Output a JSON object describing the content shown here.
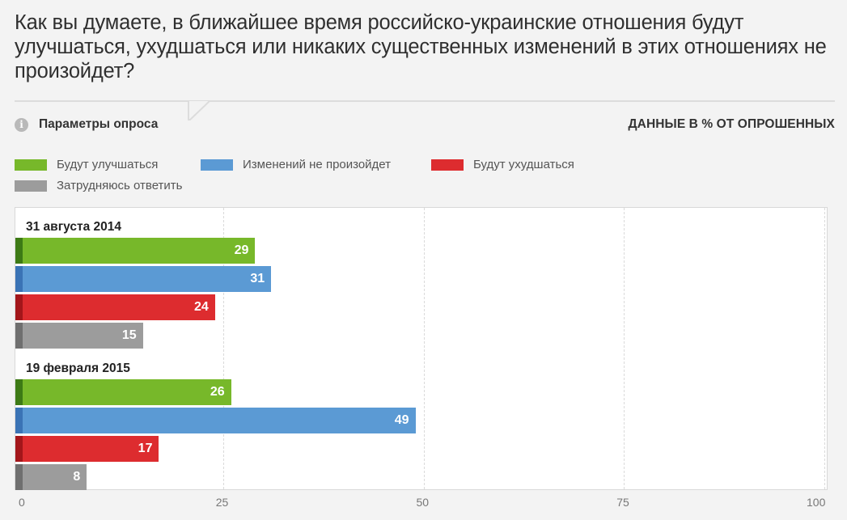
{
  "header": {
    "question": "Как вы думаете, в ближайшее время российско-украинские отношения будут улучшаться, ухудшаться или никаких существенных изменений в этих отношениях не произойдет?",
    "params_label": "Параметры опроса",
    "params_icon": "info-icon",
    "units_label": "ДАННЫЕ В % ОТ ОПРОШЕННЫХ"
  },
  "legend": [
    {
      "label": "Будут улучшаться",
      "color": "#77b82a"
    },
    {
      "label": "Изменений не произойдет",
      "color": "#5b9ad4"
    },
    {
      "label": "Будут ухудшаться",
      "color": "#dd2c2f"
    },
    {
      "label": "Затрудняюсь ответить",
      "color": "#9c9c9c"
    }
  ],
  "chart_data": {
    "type": "bar",
    "orientation": "horizontal",
    "xlim": [
      0,
      100
    ],
    "xticks": [
      "0",
      "25",
      "50",
      "75",
      "100"
    ],
    "grid": true,
    "legend_position": "top-left",
    "categories": [
      "31 августа 2014",
      "19 февраля 2015"
    ],
    "series": [
      {
        "name": "Будут улучшаться",
        "color": "#77b82a",
        "cap_color": "#3d7a15",
        "values": [
          29,
          26
        ]
      },
      {
        "name": "Изменений не произойдет",
        "color": "#5b9ad4",
        "cap_color": "#3a73b5",
        "values": [
          31,
          49
        ]
      },
      {
        "name": "Будут ухудшаться",
        "color": "#dd2c2f",
        "cap_color": "#a3161a",
        "values": [
          24,
          17
        ]
      },
      {
        "name": "Затрудняюсь ответить",
        "color": "#9c9c9c",
        "cap_color": "#6f6f6f",
        "values": [
          15,
          8
        ]
      }
    ]
  }
}
